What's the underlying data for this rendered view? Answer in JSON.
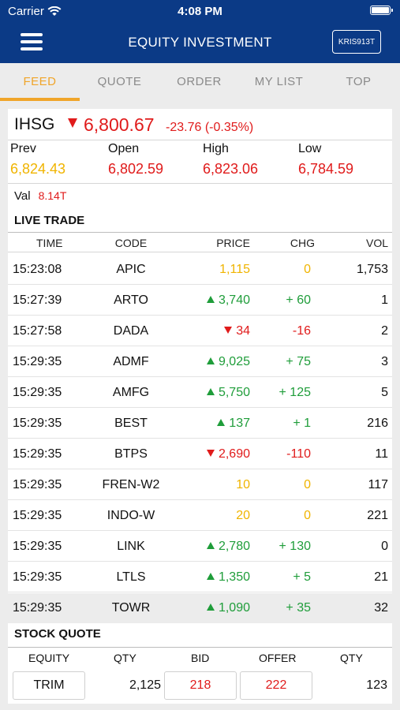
{
  "status_bar": {
    "carrier": "Carrier",
    "time": "4:08 PM"
  },
  "header": {
    "title": "EQUITY INVESTMENT",
    "user_id": "KRIS913T"
  },
  "tabs": [
    "FEED",
    "QUOTE",
    "ORDER",
    "MY LIST",
    "TOP"
  ],
  "active_tab": "FEED",
  "index": {
    "name": "IHSG",
    "value": "6,800.67",
    "change": "-23.76 (-0.35%)",
    "stats": [
      {
        "label": "Prev",
        "value": "6,824.43",
        "color": "#f0b400"
      },
      {
        "label": "Open",
        "value": "6,802.59",
        "color": "#e01b1b"
      },
      {
        "label": "High",
        "value": "6,823.06",
        "color": "#e01b1b"
      },
      {
        "label": "Low",
        "value": "6,784.59",
        "color": "#e01b1b"
      }
    ],
    "val_label": "Val",
    "val_value": "8.14T"
  },
  "live_trade": {
    "title": "LIVE TRADE",
    "columns": [
      "TIME",
      "CODE",
      "PRICE",
      "CHG",
      "VOL"
    ],
    "rows": [
      {
        "time": "15:23:08",
        "code": "APIC",
        "price": "1,115",
        "chg": "0",
        "vol": "1,753",
        "dir": "flat"
      },
      {
        "time": "15:27:39",
        "code": "ARTO",
        "price": "3,740",
        "chg": "+ 60",
        "vol": "1",
        "dir": "up"
      },
      {
        "time": "15:27:58",
        "code": "DADA",
        "price": "34",
        "chg": "-16",
        "vol": "2",
        "dir": "down"
      },
      {
        "time": "15:29:35",
        "code": "ADMF",
        "price": "9,025",
        "chg": "+ 75",
        "vol": "3",
        "dir": "up"
      },
      {
        "time": "15:29:35",
        "code": "AMFG",
        "price": "5,750",
        "chg": "+ 125",
        "vol": "5",
        "dir": "up"
      },
      {
        "time": "15:29:35",
        "code": "BEST",
        "price": "137",
        "chg": "+ 1",
        "vol": "216",
        "dir": "up"
      },
      {
        "time": "15:29:35",
        "code": "BTPS",
        "price": "2,690",
        "chg": "-110",
        "vol": "11",
        "dir": "down"
      },
      {
        "time": "15:29:35",
        "code": "FREN-W2",
        "price": "10",
        "chg": "0",
        "vol": "117",
        "dir": "flat"
      },
      {
        "time": "15:29:35",
        "code": "INDO-W",
        "price": "20",
        "chg": "0",
        "vol": "221",
        "dir": "flat"
      },
      {
        "time": "15:29:35",
        "code": "LINK",
        "price": "2,780",
        "chg": "+ 130",
        "vol": "0",
        "dir": "up"
      },
      {
        "time": "15:29:35",
        "code": "LTLS",
        "price": "1,350",
        "chg": "+ 5",
        "vol": "21",
        "dir": "up"
      },
      {
        "time": "15:29:35",
        "code": "TOWR",
        "price": "1,090",
        "chg": "+ 35",
        "vol": "32",
        "dir": "up"
      }
    ]
  },
  "stock_quote": {
    "title": "STOCK QUOTE",
    "columns": [
      "EQUITY",
      "QTY",
      "BID",
      "OFFER",
      "QTY"
    ],
    "equity": "TRIM",
    "bid_qty": "2,125",
    "bid": "218",
    "offer": "222",
    "offer_qty": "123"
  }
}
